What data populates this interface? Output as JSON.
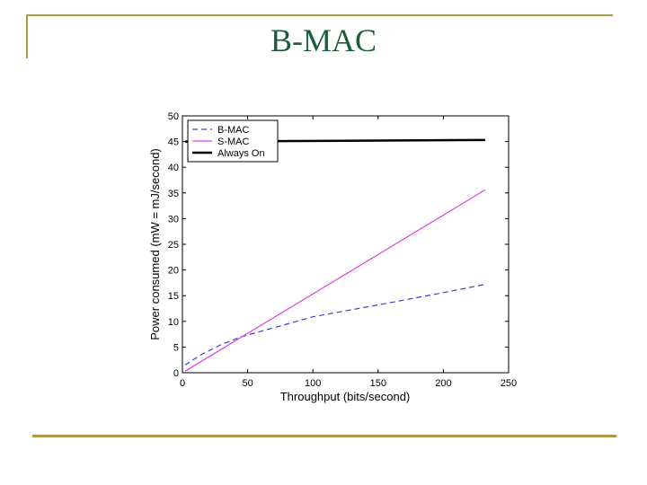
{
  "slide": {
    "title": "B-MAC",
    "title_color": "#1c5e3a",
    "rule_color": "#a89a48"
  },
  "chart_data": {
    "type": "line",
    "title": "",
    "xlabel": "Throughput (bits/second)",
    "ylabel": "Power consumed (mW = mJ/second)",
    "xlim": [
      0,
      250
    ],
    "ylim": [
      0,
      50
    ],
    "xticks": [
      0,
      50,
      100,
      150,
      200,
      250
    ],
    "yticks": [
      0,
      5,
      10,
      15,
      20,
      25,
      30,
      35,
      40,
      45,
      50
    ],
    "grid": false,
    "legend_position": "upper left",
    "series": [
      {
        "name": "B-MAC",
        "style": "dashed",
        "color": "#4040c8",
        "x": [
          2,
          15,
          30,
          45,
          75,
          100,
          150,
          200,
          232
        ],
        "y": [
          1.5,
          3.6,
          5.5,
          7.0,
          9.1,
          10.9,
          13.2,
          15.6,
          17.2
        ]
      },
      {
        "name": "S-MAC",
        "style": "solid",
        "color": "#e040e0",
        "x": [
          2,
          232
        ],
        "y": [
          0.3,
          35.6
        ]
      },
      {
        "name": "Always On",
        "style": "solid-thick",
        "color": "#000000",
        "x": [
          2,
          232
        ],
        "y": [
          45.0,
          45.3
        ]
      }
    ]
  }
}
